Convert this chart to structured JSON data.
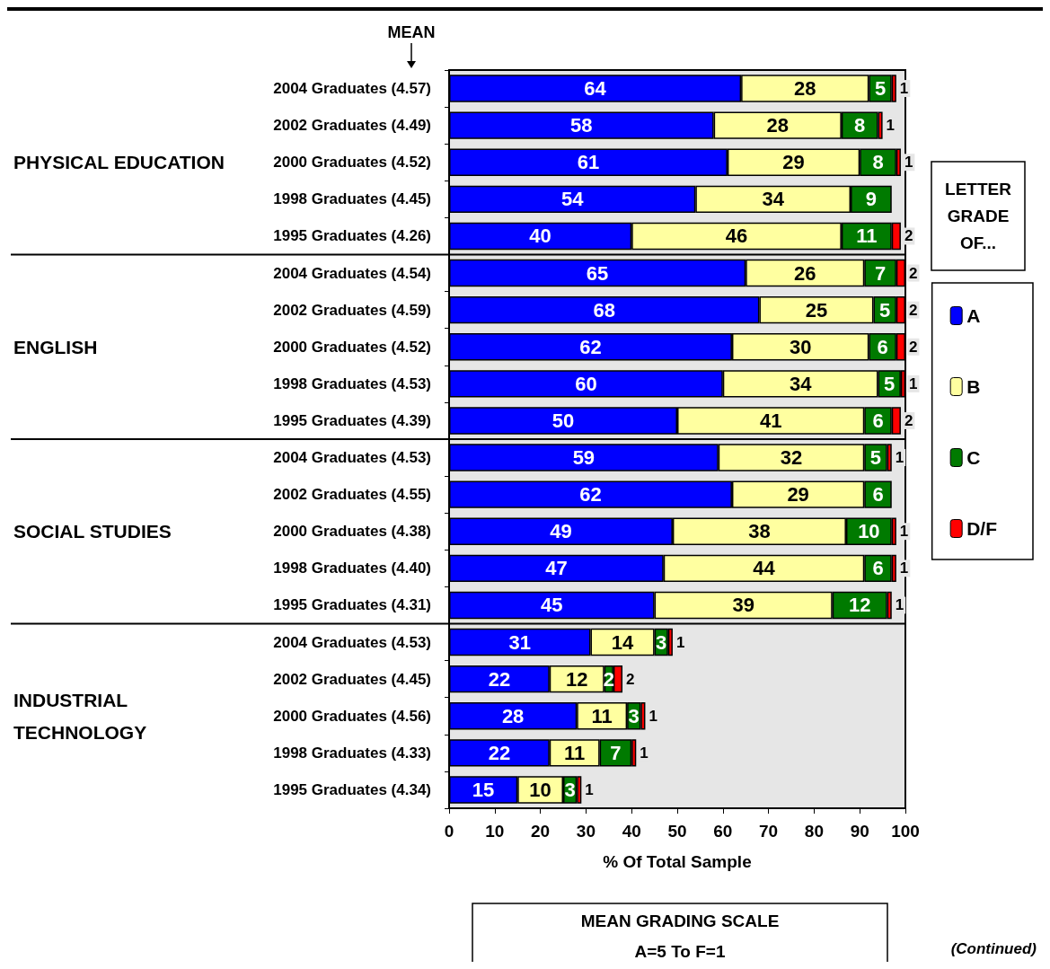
{
  "chart_data": {
    "type": "bar",
    "orientation": "horizontal",
    "stacked": true,
    "data_labels": true,
    "xlabel": "% Of Total Sample",
    "legend_title": "LETTER GRADE OF...",
    "legend": "right",
    "grid": false,
    "xlim": [
      0,
      100
    ],
    "xticks": [
      0,
      10,
      20,
      30,
      40,
      50,
      60,
      70,
      80,
      90,
      100
    ],
    "categories": [
      "2004 Graduates (4.57)",
      "2002 Graduates (4.49)",
      "2000 Graduates (4.52)",
      "1998 Graduates (4.45)",
      "1995 Graduates (4.26)",
      "2004 Graduates (4.54)",
      "2002 Graduates (4.59)",
      "2000 Graduates (4.52)",
      "1998 Graduates (4.53)",
      "1995 Graduates (4.39)",
      "2004 Graduates (4.53)",
      "2002 Graduates (4.55)",
      "2000 Graduates (4.38)",
      "1998 Graduates (4.40)",
      "1995 Graduates (4.31)",
      "2004 Graduates (4.53)",
      "2002 Graduates (4.45)",
      "2000 Graduates (4.56)",
      "1998 Graduates (4.33)",
      "1995 Graduates (4.34)"
    ],
    "series": [
      {
        "name": "A",
        "color": "#0000ff",
        "values": [
          64,
          58,
          61,
          54,
          40,
          65,
          68,
          62,
          60,
          50,
          59,
          62,
          49,
          47,
          45,
          31,
          22,
          28,
          22,
          15
        ]
      },
      {
        "name": "B",
        "color": "#ffffa0",
        "values": [
          28,
          28,
          29,
          34,
          46,
          26,
          25,
          30,
          34,
          41,
          32,
          29,
          38,
          44,
          39,
          14,
          12,
          11,
          11,
          10
        ]
      },
      {
        "name": "C",
        "color": "#007a00",
        "values": [
          5,
          8,
          8,
          9,
          11,
          7,
          5,
          6,
          5,
          6,
          5,
          6,
          10,
          6,
          12,
          3,
          2,
          3,
          7,
          3
        ]
      },
      {
        "name": "D/F",
        "color": "#ff0000",
        "values": [
          1,
          1,
          1,
          null,
          2,
          2,
          2,
          2,
          1,
          2,
          1,
          null,
          1,
          1,
          1,
          1,
          2,
          1,
          1,
          1
        ]
      }
    ],
    "annotations": [
      "PHYSICAL EDUCATION",
      "ENGLISH",
      "SOCIAL STUDIES",
      "INDUSTRIAL\nTECHNOLOGY",
      "MEAN",
      "MEAN GRADING SCALE\nA=5 To F=1",
      "(Continued)"
    ]
  }
}
